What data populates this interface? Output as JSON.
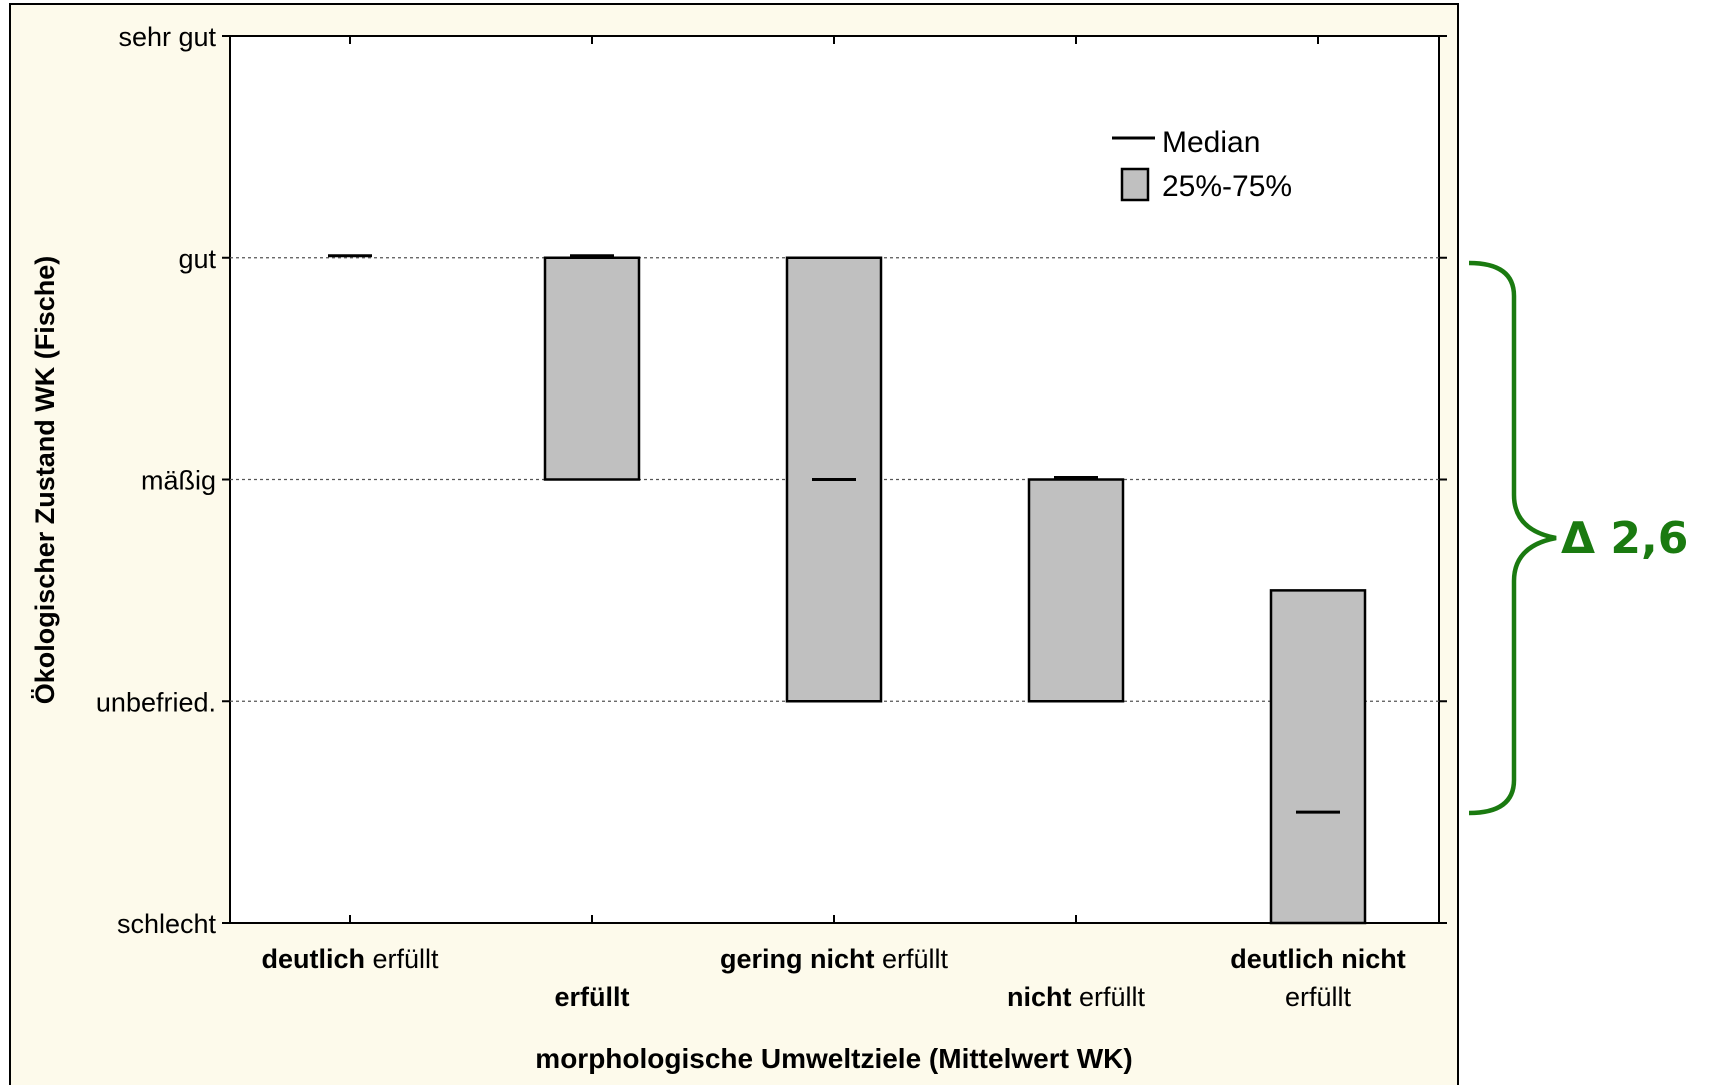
{
  "chart_data": {
    "type": "box",
    "ylabel": "Ökologischer Zustand WK (Fische)",
    "xlabel": "morphologische Umweltziele (Mittelwert WK)",
    "ylim": [
      0,
      4
    ],
    "y_ticks": [
      {
        "value": 4,
        "label": "sehr gut"
      },
      {
        "value": 3,
        "label": "gut"
      },
      {
        "value": 2,
        "label": "mäßig"
      },
      {
        "value": 1,
        "label": "unbefried."
      },
      {
        "value": 0,
        "label": "schlecht"
      }
    ],
    "grid": "dotted horizontal at gut, mäßig, unbefried.",
    "legend": {
      "position": "top-right",
      "median_label": "Median",
      "box_label": "25%-75%"
    },
    "categories": [
      {
        "bold": "deutlich",
        "normal": " erfüllt",
        "median": 3,
        "q1": 3,
        "q3": 3
      },
      {
        "bold": "erfüllt",
        "normal": "",
        "median": 3,
        "q1": 2,
        "q3": 3
      },
      {
        "bold": "gering nicht",
        "normal": " erfüllt",
        "median": 2,
        "q1": 1,
        "q3": 3
      },
      {
        "bold": "nicht",
        "normal": " erfüllt",
        "median": 2,
        "q1": 1,
        "q3": 2
      },
      {
        "bold": "deutlich nicht",
        "normal": "erfüllt",
        "median": 0.5,
        "q1": 0,
        "q3": 1.5
      }
    ],
    "annotation": {
      "text": "Δ 2,6",
      "from": 3,
      "to": 0.5
    },
    "colors": {
      "background": "#fdfaeb",
      "box_fill": "#c0c0c0",
      "annotation": "#1a7a10"
    }
  }
}
